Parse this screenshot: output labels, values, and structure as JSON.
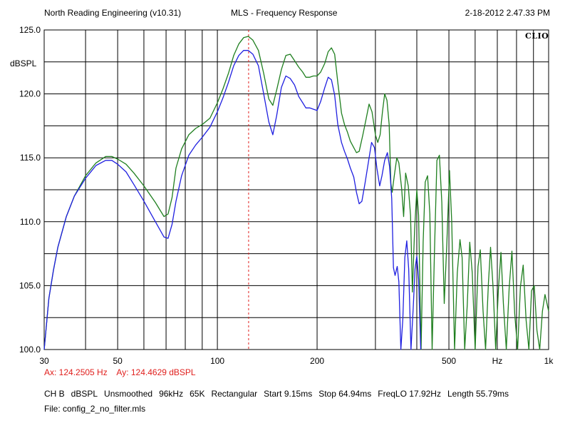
{
  "header": {
    "left": "North Reading Engineering (v10.31)",
    "center": "MLS - Frequency Response",
    "right": "2-18-2012 2.47.33 PM"
  },
  "logo": "CLIO",
  "cursor": {
    "x": "Ax: 124.2505 Hz",
    "y": "Ay: 124.4629 dBSPL",
    "color": "#e0201e"
  },
  "settings": [
    "CH B",
    "dBSPL",
    "Unsmoothed",
    "96kHz",
    "65K",
    "Rectangular",
    "Start 9.15ms",
    "Stop 64.94ms",
    "FreqLO 17.92Hz",
    "Length 55.79ms"
  ],
  "file": "File: config_2_no_filter.mls",
  "chart_data": {
    "type": "line",
    "xscale": "log",
    "xlim": [
      30,
      1000
    ],
    "ylim": [
      100,
      125
    ],
    "ylabel": "dBSPL",
    "grid": true,
    "x_ticks": [
      {
        "value": 30,
        "label": "30"
      },
      {
        "value": 50,
        "label": "50"
      },
      {
        "value": 100,
        "label": "100"
      },
      {
        "value": 200,
        "label": "200"
      },
      {
        "value": 500,
        "label": "500"
      },
      {
        "value": 1000,
        "label": "1k"
      }
    ],
    "x_unit_label": {
      "value": 700,
      "label": "Hz"
    },
    "y_ticks": [
      {
        "value": 100,
        "label": "100.0"
      },
      {
        "value": 105,
        "label": "105.0"
      },
      {
        "value": 110,
        "label": "110.0"
      },
      {
        "value": 115,
        "label": "115.0"
      },
      {
        "value": 120,
        "label": "120.0"
      },
      {
        "value": 125,
        "label": "125.0"
      }
    ],
    "cursor_x": 124.25,
    "series": [
      {
        "color": "#1f7f1f",
        "points": [
          [
            30,
            100.0
          ],
          [
            31,
            104.0
          ],
          [
            32,
            106.2
          ],
          [
            33,
            108.0
          ],
          [
            35,
            110.4
          ],
          [
            37,
            112.0
          ],
          [
            40,
            113.6
          ],
          [
            43,
            114.6
          ],
          [
            46,
            115.1
          ],
          [
            48,
            115.1
          ],
          [
            50,
            114.9
          ],
          [
            53,
            114.5
          ],
          [
            56,
            113.8
          ],
          [
            60,
            112.8
          ],
          [
            65,
            111.5
          ],
          [
            69,
            110.4
          ],
          [
            71,
            110.6
          ],
          [
            73,
            111.9
          ],
          [
            75,
            114.2
          ],
          [
            78,
            115.7
          ],
          [
            82,
            116.8
          ],
          [
            86,
            117.3
          ],
          [
            90,
            117.6
          ],
          [
            95,
            118.1
          ],
          [
            100,
            119.3
          ],
          [
            104,
            120.4
          ],
          [
            108,
            121.6
          ],
          [
            112,
            123.0
          ],
          [
            116,
            123.9
          ],
          [
            120,
            124.4
          ],
          [
            124,
            124.5
          ],
          [
            128,
            124.2
          ],
          [
            133,
            123.4
          ],
          [
            138,
            121.6
          ],
          [
            143,
            119.6
          ],
          [
            147,
            119.1
          ],
          [
            151,
            120.3
          ],
          [
            156,
            121.9
          ],
          [
            161,
            123.0
          ],
          [
            166,
            123.1
          ],
          [
            171,
            122.6
          ],
          [
            176,
            122.1
          ],
          [
            181,
            121.7
          ],
          [
            185,
            121.3
          ],
          [
            190,
            121.3
          ],
          [
            195,
            121.4
          ],
          [
            200,
            121.4
          ],
          [
            205,
            121.7
          ],
          [
            211,
            122.4
          ],
          [
            216,
            123.3
          ],
          [
            221,
            123.6
          ],
          [
            226,
            123.1
          ],
          [
            231,
            120.9
          ],
          [
            237,
            118.5
          ],
          [
            242,
            117.6
          ],
          [
            247,
            117.0
          ],
          [
            252,
            116.3
          ],
          [
            258,
            115.8
          ],
          [
            263,
            115.4
          ],
          [
            268,
            115.5
          ],
          [
            275,
            116.8
          ],
          [
            281,
            118.0
          ],
          [
            287,
            119.2
          ],
          [
            293,
            118.6
          ],
          [
            300,
            116.8
          ],
          [
            305,
            116.2
          ],
          [
            310,
            116.8
          ],
          [
            315,
            118.6
          ],
          [
            320,
            120.0
          ],
          [
            325,
            119.5
          ],
          [
            330,
            117.6
          ],
          [
            334,
            113.0
          ],
          [
            337,
            112.3
          ],
          [
            342,
            113.6
          ],
          [
            348,
            115.0
          ],
          [
            353,
            114.6
          ],
          [
            360,
            112.6
          ],
          [
            365,
            110.4
          ],
          [
            370,
            113.8
          ],
          [
            377,
            112.8
          ],
          [
            383,
            110.5
          ],
          [
            388,
            104.5
          ],
          [
            394,
            109.4
          ],
          [
            400,
            112.5
          ],
          [
            405,
            110.5
          ],
          [
            412,
            100.0
          ],
          [
            418,
            108.4
          ],
          [
            424,
            113.1
          ],
          [
            431,
            113.6
          ],
          [
            438,
            110.6
          ],
          [
            445,
            100.0
          ],
          [
            452,
            107.5
          ],
          [
            460,
            114.8
          ],
          [
            468,
            115.2
          ],
          [
            476,
            111.5
          ],
          [
            484,
            103.6
          ],
          [
            493,
            108.4
          ],
          [
            502,
            114.0
          ],
          [
            510,
            110.0
          ],
          [
            520,
            100.0
          ],
          [
            530,
            106.0
          ],
          [
            540,
            108.6
          ],
          [
            548,
            107.2
          ],
          [
            558,
            100.0
          ],
          [
            568,
            103.5
          ],
          [
            578,
            108.4
          ],
          [
            588,
            106.0
          ],
          [
            600,
            100.0
          ],
          [
            612,
            106.5
          ],
          [
            622,
            107.8
          ],
          [
            634,
            103.0
          ],
          [
            645,
            100.0
          ],
          [
            658,
            105.2
          ],
          [
            668,
            108.0
          ],
          [
            680,
            104.8
          ],
          [
            692,
            100.0
          ],
          [
            705,
            104.6
          ],
          [
            718,
            107.6
          ],
          [
            730,
            103.6
          ],
          [
            745,
            100.0
          ],
          [
            760,
            104.8
          ],
          [
            775,
            107.7
          ],
          [
            790,
            102.8
          ],
          [
            806,
            100.0
          ],
          [
            822,
            104.9
          ],
          [
            838,
            106.6
          ],
          [
            855,
            102.3
          ],
          [
            872,
            100.0
          ],
          [
            888,
            104.6
          ],
          [
            905,
            105.0
          ],
          [
            922,
            101.5
          ],
          [
            940,
            100.0
          ],
          [
            958,
            103.0
          ],
          [
            975,
            104.3
          ],
          [
            1000,
            103.0
          ]
        ]
      },
      {
        "color": "#1f1fe0",
        "points": [
          [
            30,
            100.0
          ],
          [
            31,
            104.0
          ],
          [
            32,
            106.2
          ],
          [
            33,
            108.0
          ],
          [
            35,
            110.4
          ],
          [
            37,
            112.0
          ],
          [
            40,
            113.4
          ],
          [
            43,
            114.4
          ],
          [
            46,
            114.8
          ],
          [
            48,
            114.8
          ],
          [
            50,
            114.5
          ],
          [
            53,
            113.9
          ],
          [
            56,
            112.9
          ],
          [
            60,
            111.6
          ],
          [
            65,
            110.0
          ],
          [
            69,
            108.8
          ],
          [
            71,
            108.7
          ],
          [
            73,
            109.8
          ],
          [
            75,
            111.6
          ],
          [
            78,
            113.6
          ],
          [
            82,
            115.2
          ],
          [
            86,
            116.0
          ],
          [
            90,
            116.6
          ],
          [
            95,
            117.4
          ],
          [
            100,
            118.6
          ],
          [
            104,
            119.7
          ],
          [
            108,
            120.9
          ],
          [
            112,
            122.2
          ],
          [
            116,
            123.0
          ],
          [
            120,
            123.4
          ],
          [
            124,
            123.4
          ],
          [
            128,
            123.1
          ],
          [
            133,
            122.2
          ],
          [
            138,
            120.0
          ],
          [
            143,
            117.8
          ],
          [
            147,
            116.8
          ],
          [
            151,
            118.3
          ],
          [
            156,
            120.5
          ],
          [
            161,
            121.4
          ],
          [
            166,
            121.2
          ],
          [
            171,
            120.7
          ],
          [
            176,
            119.8
          ],
          [
            181,
            119.3
          ],
          [
            185,
            118.9
          ],
          [
            190,
            118.9
          ],
          [
            195,
            118.8
          ],
          [
            200,
            118.7
          ],
          [
            205,
            119.4
          ],
          [
            211,
            120.5
          ],
          [
            216,
            121.3
          ],
          [
            221,
            121.1
          ],
          [
            226,
            119.9
          ],
          [
            231,
            117.6
          ],
          [
            237,
            116.2
          ],
          [
            242,
            115.5
          ],
          [
            247,
            114.9
          ],
          [
            252,
            114.2
          ],
          [
            258,
            113.5
          ],
          [
            263,
            112.3
          ],
          [
            268,
            111.4
          ],
          [
            273,
            111.6
          ],
          [
            279,
            113.0
          ],
          [
            285,
            114.5
          ],
          [
            292,
            116.2
          ],
          [
            298,
            115.8
          ],
          [
            303,
            114.2
          ],
          [
            309,
            112.8
          ],
          [
            314,
            113.6
          ],
          [
            320,
            114.8
          ],
          [
            326,
            115.4
          ],
          [
            331,
            114.3
          ],
          [
            336,
            111.8
          ],
          [
            340,
            106.4
          ],
          [
            344,
            105.8
          ],
          [
            349,
            106.5
          ],
          [
            353,
            105.3
          ],
          [
            358,
            100.0
          ],
          [
            363,
            102.4
          ],
          [
            368,
            107.2
          ],
          [
            373,
            108.5
          ],
          [
            378,
            106.3
          ],
          [
            384,
            100.0
          ],
          [
            390,
            103.2
          ],
          [
            395,
            106.3
          ],
          [
            400,
            107.3
          ],
          [
            405,
            105.5
          ],
          [
            411,
            100.0
          ]
        ]
      }
    ]
  }
}
